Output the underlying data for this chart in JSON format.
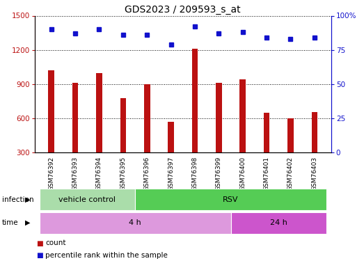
{
  "title": "GDS2023 / 209593_s_at",
  "samples": [
    "GSM76392",
    "GSM76393",
    "GSM76394",
    "GSM76395",
    "GSM76396",
    "GSM76397",
    "GSM76398",
    "GSM76399",
    "GSM76400",
    "GSM76401",
    "GSM76402",
    "GSM76403"
  ],
  "counts": [
    1020,
    910,
    1000,
    780,
    900,
    570,
    1210,
    910,
    940,
    650,
    600,
    655
  ],
  "percentile_ranks": [
    90,
    87,
    90,
    86,
    86,
    79,
    92,
    87,
    88,
    84,
    83,
    84
  ],
  "ylim_left": [
    300,
    1500
  ],
  "ylim_right": [
    0,
    100
  ],
  "yticks_left": [
    300,
    600,
    900,
    1200,
    1500
  ],
  "yticks_right": [
    0,
    25,
    50,
    75,
    100
  ],
  "bar_color": "#bb1111",
  "dot_color": "#1111cc",
  "infection_groups": [
    {
      "label": "vehicle control",
      "start": 0,
      "end": 4,
      "color": "#aaddaa"
    },
    {
      "label": "RSV",
      "start": 4,
      "end": 12,
      "color": "#55cc55"
    }
  ],
  "time_groups": [
    {
      "label": "4 h",
      "start": 0,
      "end": 8,
      "color": "#dd99dd"
    },
    {
      "label": "24 h",
      "start": 8,
      "end": 12,
      "color": "#cc55cc"
    }
  ],
  "background_color": "#ffffff",
  "plot_bg_color": "#ffffff",
  "xlab_bg_color": "#cccccc",
  "legend_count_label": "count",
  "legend_pct_label": "percentile rank within the sample",
  "bar_width": 0.25
}
